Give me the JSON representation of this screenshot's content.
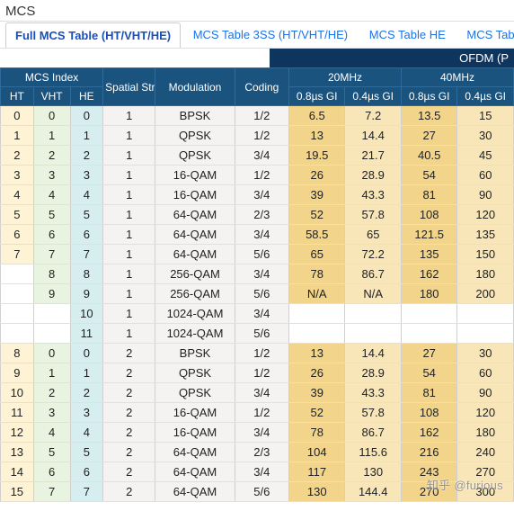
{
  "title": "MCS",
  "tabs": {
    "items": [
      {
        "label": "Full MCS Table (HT/VHT/HE)",
        "active": true
      },
      {
        "label": "MCS Table 3SS (HT/VHT/HE)",
        "active": false
      },
      {
        "label": "MCS Table HE",
        "active": false
      },
      {
        "label": "MCS Table HE (",
        "active": false
      }
    ]
  },
  "super_header": "OFDM (P",
  "headers": {
    "group1": "MCS Index",
    "group2": "Spatial Stream",
    "group3": "Modulation",
    "group4": "Coding",
    "group5": "20MHz",
    "group6": "40MHz",
    "sub": {
      "ht": "HT",
      "vht": "VHT",
      "he": "HE",
      "g20a": "0.8µs GI",
      "g20b": "0.4µs GI",
      "g40a": "0.8µs GI",
      "g40b": "0.4µs GI"
    }
  },
  "rows": [
    {
      "ht": "0",
      "vht": "0",
      "he": "0",
      "ss": "1",
      "mod": "BPSK",
      "cod": "1/2",
      "c20a": "6.5",
      "c20b": "7.2",
      "c40a": "13.5",
      "c40b": "15"
    },
    {
      "ht": "1",
      "vht": "1",
      "he": "1",
      "ss": "1",
      "mod": "QPSK",
      "cod": "1/2",
      "c20a": "13",
      "c20b": "14.4",
      "c40a": "27",
      "c40b": "30"
    },
    {
      "ht": "2",
      "vht": "2",
      "he": "2",
      "ss": "1",
      "mod": "QPSK",
      "cod": "3/4",
      "c20a": "19.5",
      "c20b": "21.7",
      "c40a": "40.5",
      "c40b": "45"
    },
    {
      "ht": "3",
      "vht": "3",
      "he": "3",
      "ss": "1",
      "mod": "16-QAM",
      "cod": "1/2",
      "c20a": "26",
      "c20b": "28.9",
      "c40a": "54",
      "c40b": "60"
    },
    {
      "ht": "4",
      "vht": "4",
      "he": "4",
      "ss": "1",
      "mod": "16-QAM",
      "cod": "3/4",
      "c20a": "39",
      "c20b": "43.3",
      "c40a": "81",
      "c40b": "90"
    },
    {
      "ht": "5",
      "vht": "5",
      "he": "5",
      "ss": "1",
      "mod": "64-QAM",
      "cod": "2/3",
      "c20a": "52",
      "c20b": "57.8",
      "c40a": "108",
      "c40b": "120"
    },
    {
      "ht": "6",
      "vht": "6",
      "he": "6",
      "ss": "1",
      "mod": "64-QAM",
      "cod": "3/4",
      "c20a": "58.5",
      "c20b": "65",
      "c40a": "121.5",
      "c40b": "135"
    },
    {
      "ht": "7",
      "vht": "7",
      "he": "7",
      "ss": "1",
      "mod": "64-QAM",
      "cod": "5/6",
      "c20a": "65",
      "c20b": "72.2",
      "c40a": "135",
      "c40b": "150"
    },
    {
      "ht": "",
      "vht": "8",
      "he": "8",
      "ss": "1",
      "mod": "256-QAM",
      "cod": "3/4",
      "c20a": "78",
      "c20b": "86.7",
      "c40a": "162",
      "c40b": "180"
    },
    {
      "ht": "",
      "vht": "9",
      "he": "9",
      "ss": "1",
      "mod": "256-QAM",
      "cod": "5/6",
      "c20a": "N/A",
      "c20b": "N/A",
      "c40a": "180",
      "c40b": "200"
    },
    {
      "ht": "",
      "vht": "",
      "he": "10",
      "ss": "1",
      "mod": "1024-QAM",
      "cod": "3/4",
      "c20a": "",
      "c20b": "",
      "c40a": "",
      "c40b": ""
    },
    {
      "ht": "",
      "vht": "",
      "he": "11",
      "ss": "1",
      "mod": "1024-QAM",
      "cod": "5/6",
      "c20a": "",
      "c20b": "",
      "c40a": "",
      "c40b": ""
    },
    {
      "ht": "8",
      "vht": "0",
      "he": "0",
      "ss": "2",
      "mod": "BPSK",
      "cod": "1/2",
      "c20a": "13",
      "c20b": "14.4",
      "c40a": "27",
      "c40b": "30"
    },
    {
      "ht": "9",
      "vht": "1",
      "he": "1",
      "ss": "2",
      "mod": "QPSK",
      "cod": "1/2",
      "c20a": "26",
      "c20b": "28.9",
      "c40a": "54",
      "c40b": "60"
    },
    {
      "ht": "10",
      "vht": "2",
      "he": "2",
      "ss": "2",
      "mod": "QPSK",
      "cod": "3/4",
      "c20a": "39",
      "c20b": "43.3",
      "c40a": "81",
      "c40b": "90"
    },
    {
      "ht": "11",
      "vht": "3",
      "he": "3",
      "ss": "2",
      "mod": "16-QAM",
      "cod": "1/2",
      "c20a": "52",
      "c20b": "57.8",
      "c40a": "108",
      "c40b": "120"
    },
    {
      "ht": "12",
      "vht": "4",
      "he": "4",
      "ss": "2",
      "mod": "16-QAM",
      "cod": "3/4",
      "c20a": "78",
      "c20b": "86.7",
      "c40a": "162",
      "c40b": "180"
    },
    {
      "ht": "13",
      "vht": "5",
      "he": "5",
      "ss": "2",
      "mod": "64-QAM",
      "cod": "2/3",
      "c20a": "104",
      "c20b": "115.6",
      "c40a": "216",
      "c40b": "240"
    },
    {
      "ht": "14",
      "vht": "6",
      "he": "6",
      "ss": "2",
      "mod": "64-QAM",
      "cod": "3/4",
      "c20a": "117",
      "c20b": "130",
      "c40a": "243",
      "c40b": "270"
    },
    {
      "ht": "15",
      "vht": "7",
      "he": "7",
      "ss": "2",
      "mod": "64-QAM",
      "cod": "5/6",
      "c20a": "130",
      "c20b": "144.4",
      "c40a": "270",
      "c40b": "300"
    }
  ],
  "watermark": "知乎 @furious"
}
